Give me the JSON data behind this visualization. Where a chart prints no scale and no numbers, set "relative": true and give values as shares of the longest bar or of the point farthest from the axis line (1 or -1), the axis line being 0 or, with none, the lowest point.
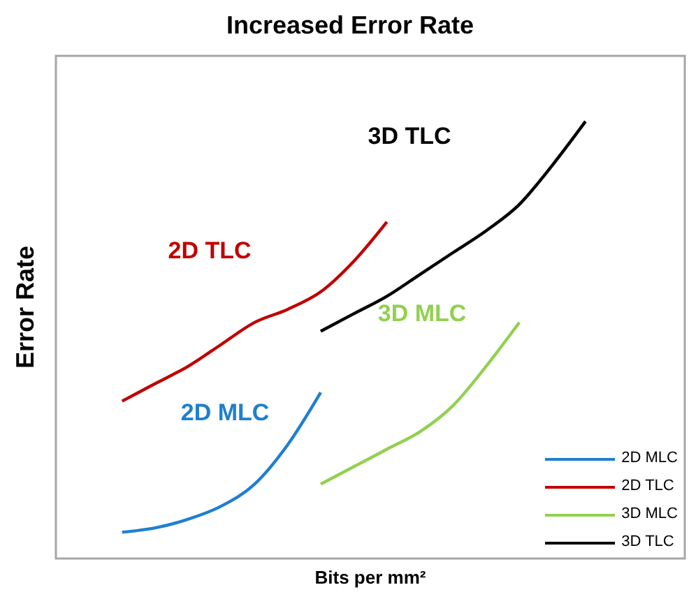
{
  "chart_data": {
    "type": "line",
    "title": "Increased Error Rate",
    "xlabel": "Bits per mm²",
    "ylabel": "Error Rate",
    "relative": true,
    "legend": "bottom right",
    "grid": false,
    "marker": "none",
    "line_style": "solid",
    "categories": [
      null,
      null,
      null,
      null,
      null,
      null,
      null,
      null,
      null,
      null,
      null,
      null,
      null,
      null,
      null,
      null,
      null,
      null,
      null,
      null
    ],
    "series": [
      {
        "name": "2D MLC",
        "color": "#1f7fcf",
        "values": [
          null,
          null,
          0.06,
          0.07,
          0.09,
          0.12,
          0.17,
          0.26,
          0.38,
          null,
          null,
          null,
          null,
          null,
          null,
          null,
          null,
          null,
          null,
          null
        ]
      },
      {
        "name": "2D TLC",
        "color": "#c00000",
        "values": [
          null,
          null,
          0.36,
          0.4,
          0.44,
          0.49,
          0.54,
          0.57,
          0.61,
          0.68,
          0.77,
          null,
          null,
          null,
          null,
          null,
          null,
          null,
          null,
          null
        ]
      },
      {
        "name": "3D MLC",
        "color": "#92d050",
        "values": [
          null,
          null,
          null,
          null,
          null,
          null,
          null,
          null,
          0.17,
          0.21,
          0.25,
          0.29,
          0.35,
          0.44,
          0.54,
          null,
          null,
          null,
          null,
          null
        ]
      },
      {
        "name": "3D TLC",
        "color": "#000000",
        "values": [
          null,
          null,
          null,
          null,
          null,
          null,
          null,
          null,
          0.52,
          0.56,
          0.6,
          0.65,
          0.7,
          0.75,
          0.81,
          0.9,
          1,
          null,
          null,
          null
        ]
      }
    ]
  }
}
